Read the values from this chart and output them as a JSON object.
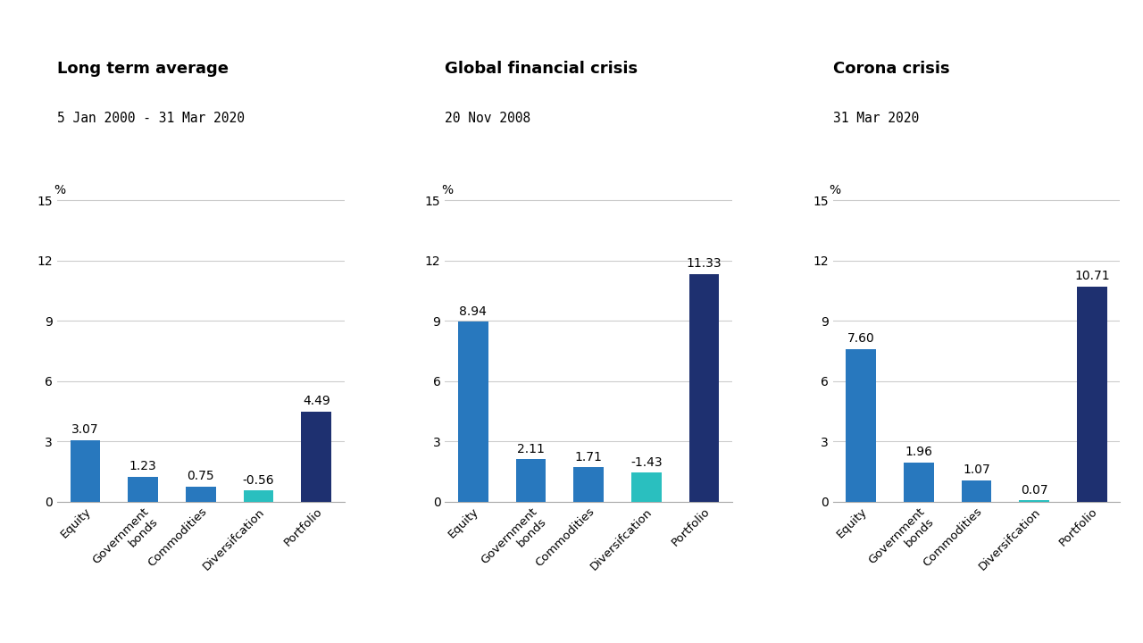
{
  "panels": [
    {
      "title": "Long term average",
      "subtitle": "5 Jan 2000 - 31 Mar 2020",
      "categories": [
        "Equity",
        "Government\nbonds",
        "Commodities",
        "Diversifcation",
        "Portfolio"
      ],
      "values": [
        3.07,
        1.23,
        0.75,
        -0.56,
        4.49
      ],
      "abs_values": [
        3.07,
        1.23,
        0.75,
        0.56,
        4.49
      ],
      "colors": [
        "#2878be",
        "#2878be",
        "#2878be",
        "#2abfbf",
        "#1e3070"
      ],
      "ylim": [
        0,
        16
      ],
      "yticks": [
        0,
        3,
        6,
        9,
        12,
        15
      ]
    },
    {
      "title": "Global financial crisis",
      "subtitle": "20 Nov 2008",
      "categories": [
        "Equity",
        "Government\nbonds",
        "Commodities",
        "Diversifcation",
        "Portfolio"
      ],
      "values": [
        8.94,
        2.11,
        1.71,
        -1.43,
        11.33
      ],
      "abs_values": [
        8.94,
        2.11,
        1.71,
        1.43,
        11.33
      ],
      "colors": [
        "#2878be",
        "#2878be",
        "#2878be",
        "#2abfbf",
        "#1e3070"
      ],
      "ylim": [
        0,
        16
      ],
      "yticks": [
        0,
        3,
        6,
        9,
        12,
        15
      ]
    },
    {
      "title": "Corona crisis",
      "subtitle": "31 Mar 2020",
      "categories": [
        "Equity",
        "Government\nbonds",
        "Commodities",
        "Diversifcation",
        "Portfolio"
      ],
      "values": [
        7.6,
        1.96,
        1.07,
        0.07,
        10.71
      ],
      "abs_values": [
        7.6,
        1.96,
        1.07,
        0.07,
        10.71
      ],
      "colors": [
        "#2878be",
        "#2878be",
        "#2878be",
        "#2abfbf",
        "#1e3070"
      ],
      "ylim": [
        0,
        16
      ],
      "yticks": [
        0,
        3,
        6,
        9,
        12,
        15
      ]
    }
  ],
  "ylabel": "%",
  "bar_width": 0.52,
  "background_color": "#ffffff",
  "grid_color": "#cccccc",
  "title_fontsize": 13,
  "subtitle_fontsize": 10.5,
  "ylabel_fontsize": 10,
  "tick_fontsize": 10,
  "value_fontsize": 10
}
